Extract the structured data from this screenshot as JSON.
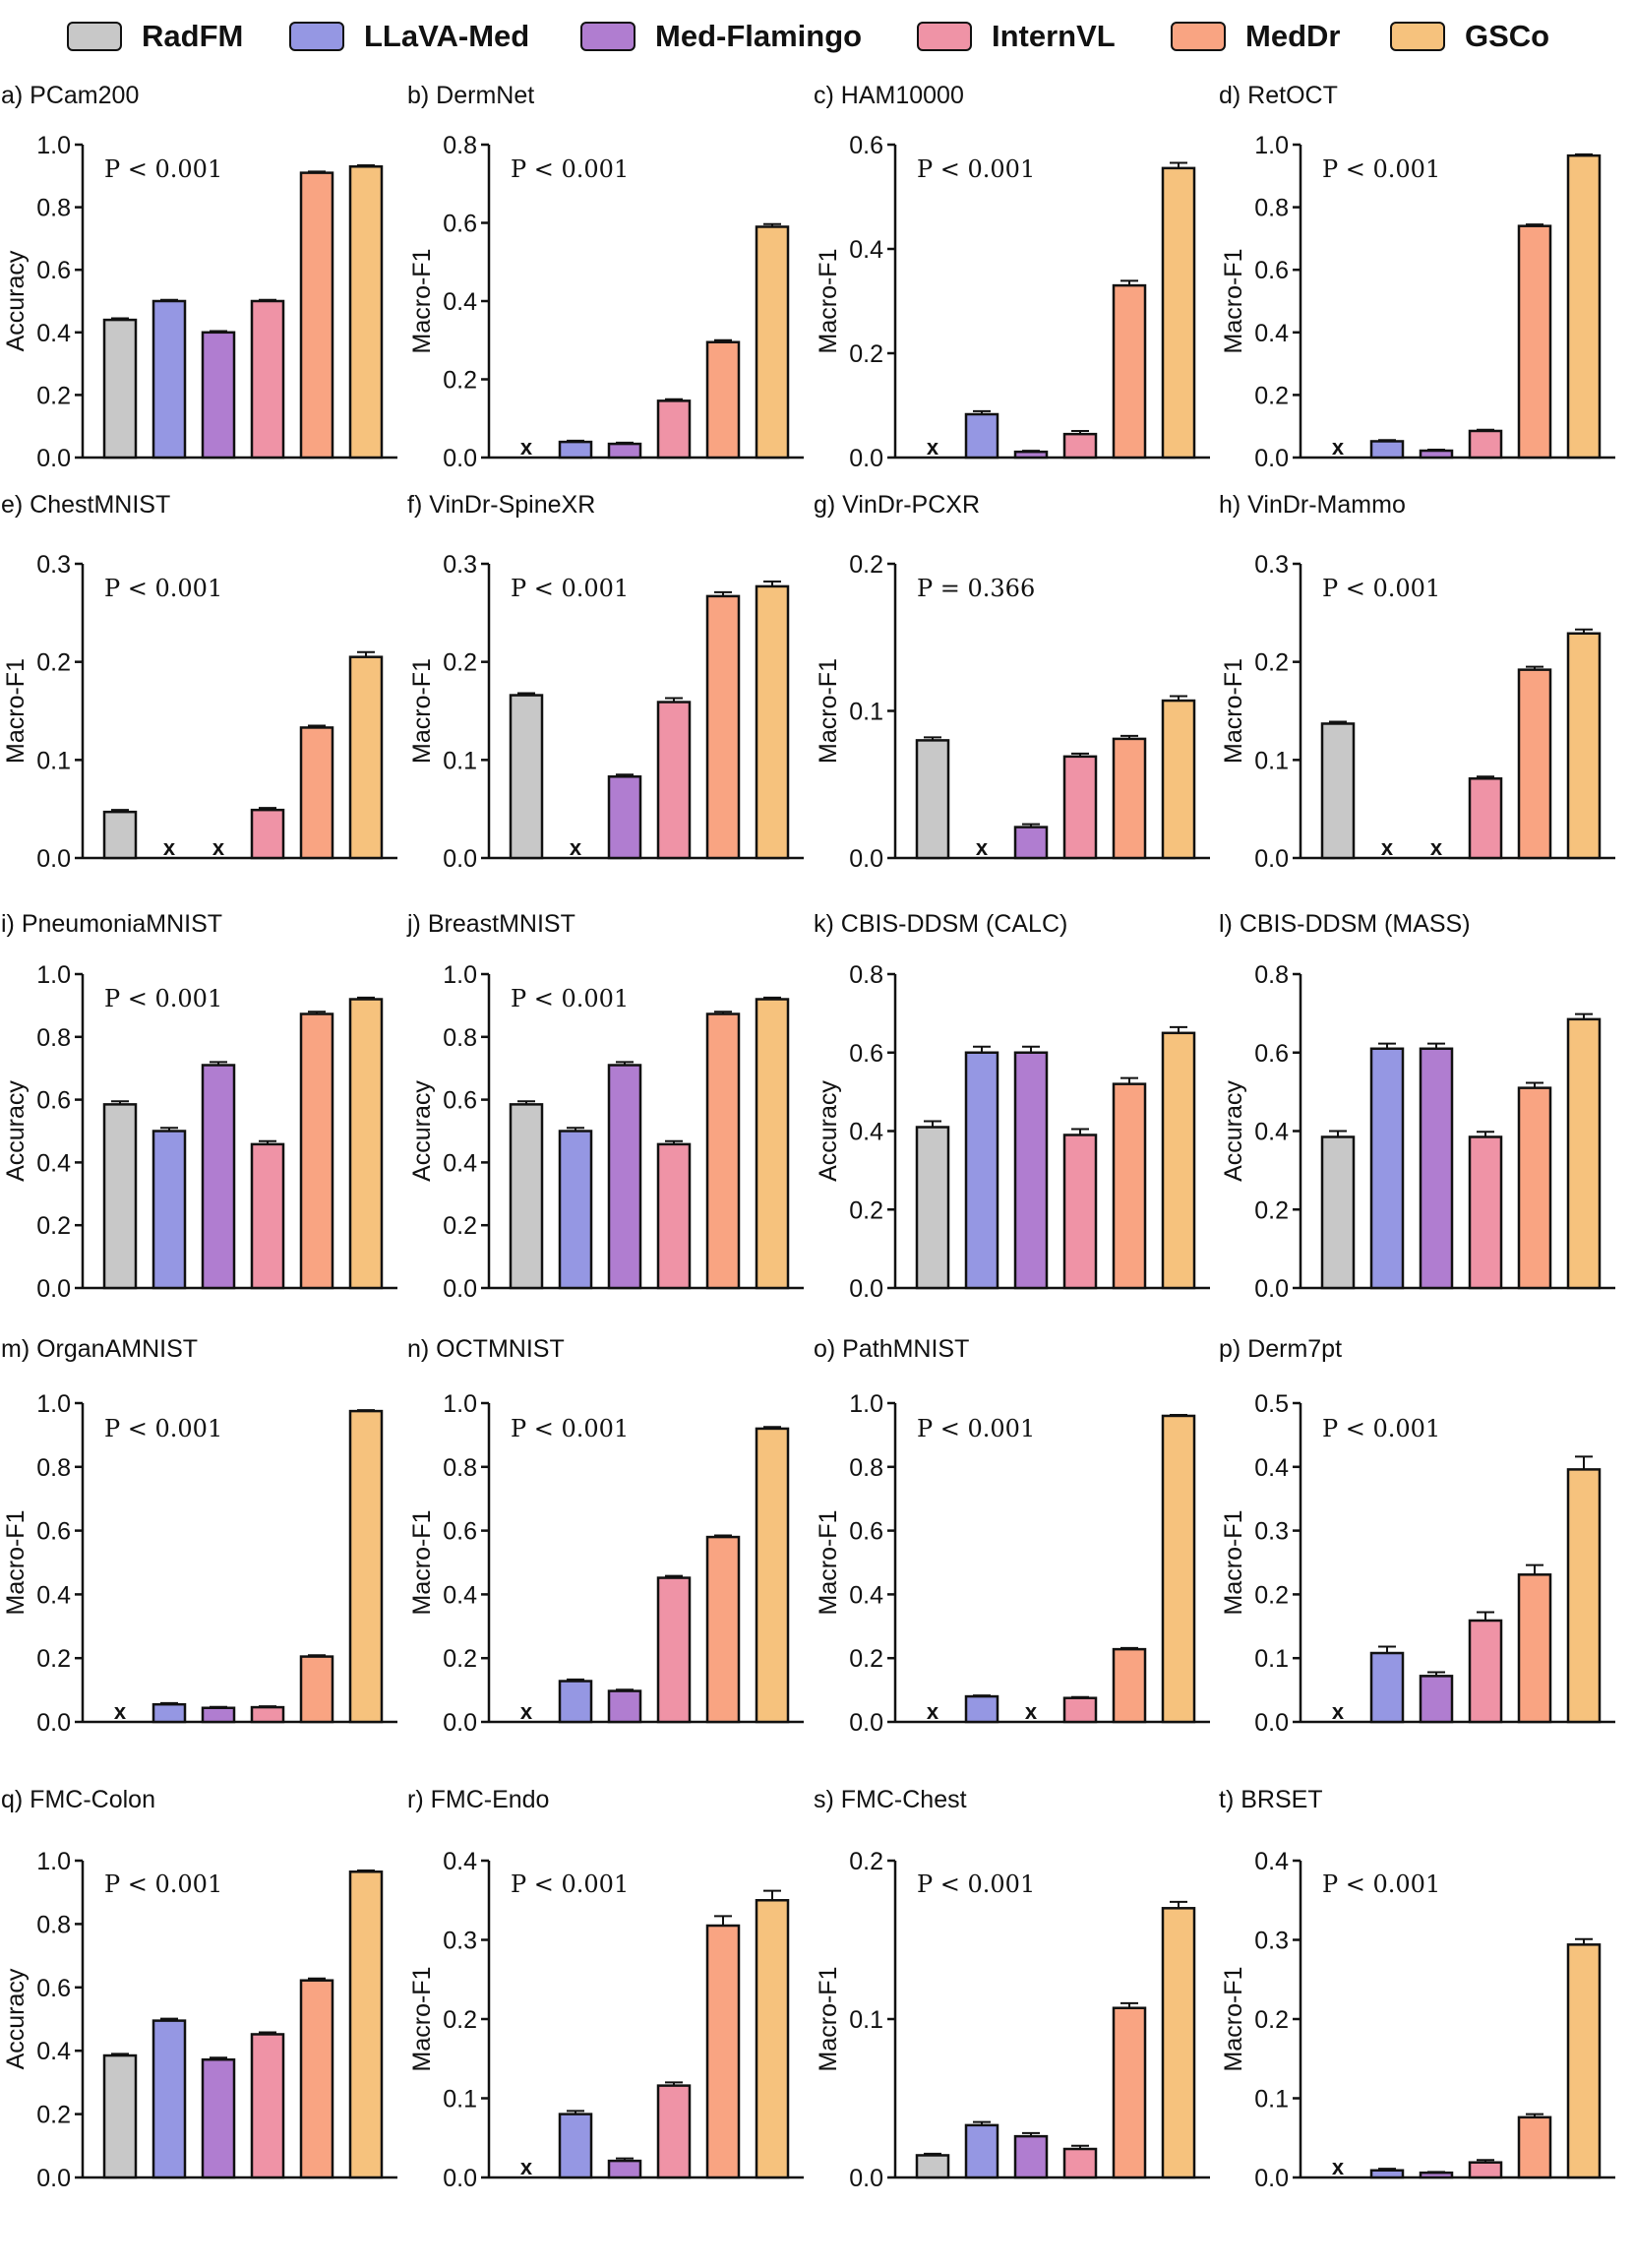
{
  "legend": [
    {
      "name": "RadFM",
      "color": "#c8c8c8"
    },
    {
      "name": "LLaVA-Med",
      "color": "#9597e3"
    },
    {
      "name": "Med-Flamingo",
      "color": "#b07dd0"
    },
    {
      "name": "InternVL",
      "color": "#ef93a6"
    },
    {
      "name": "MedDr",
      "color": "#f9a482"
    },
    {
      "name": "GSCo",
      "color": "#f6c27d"
    }
  ],
  "missing_marker": "x",
  "chart_data": [
    {
      "type": "bar",
      "title": "a) PCam200",
      "ylabel": "Accuracy",
      "ylim": [
        0,
        1.0
      ],
      "yticks": [
        "0.0",
        "0.2",
        "0.4",
        "0.6",
        "0.8",
        "1.0"
      ],
      "pvalue": "P < 0.001",
      "values": [
        0.44,
        0.5,
        0.4,
        0.5,
        0.91,
        0.93
      ],
      "errors": [
        0.005,
        0.004,
        0.004,
        0.004,
        0.004,
        0.004
      ]
    },
    {
      "type": "bar",
      "title": "b) DermNet",
      "ylabel": "Macro-F1",
      "ylim": [
        0,
        0.8
      ],
      "yticks": [
        "0.0",
        "0.2",
        "0.4",
        "0.6",
        "0.8"
      ],
      "pvalue": "P < 0.001",
      "values": [
        null,
        0.04,
        0.035,
        0.145,
        0.295,
        0.59
      ],
      "errors": [
        0,
        0.003,
        0.003,
        0.004,
        0.005,
        0.007
      ]
    },
    {
      "type": "bar",
      "title": "c) HAM10000",
      "ylabel": "Macro-F1",
      "ylim": [
        0,
        0.6
      ],
      "yticks": [
        "0.0",
        "0.2",
        "0.4",
        "0.6"
      ],
      "pvalue": "P < 0.001",
      "values": [
        null,
        0.083,
        0.011,
        0.045,
        0.33,
        0.555
      ],
      "errors": [
        0,
        0.006,
        0.002,
        0.006,
        0.009,
        0.01
      ]
    },
    {
      "type": "bar",
      "title": "d) RetOCT",
      "ylabel": "Macro-F1",
      "ylim": [
        0,
        1.0
      ],
      "yticks": [
        "0.0",
        "0.2",
        "0.4",
        "0.6",
        "0.8",
        "1.0"
      ],
      "pvalue": "P < 0.001",
      "values": [
        null,
        0.052,
        0.022,
        0.085,
        0.74,
        0.965
      ],
      "errors": [
        0,
        0.004,
        0.003,
        0.004,
        0.005,
        0.004
      ]
    },
    {
      "type": "bar",
      "title": "e) ChestMNIST",
      "ylabel": "Macro-F1",
      "ylim": [
        0,
        0.3
      ],
      "yticks": [
        "0.0",
        "0.1",
        "0.2",
        "0.3"
      ],
      "pvalue": "P < 0.001",
      "values": [
        0.047,
        null,
        null,
        0.049,
        0.133,
        0.205
      ],
      "errors": [
        0.002,
        0,
        0,
        0.002,
        0.002,
        0.005
      ]
    },
    {
      "type": "bar",
      "title": "f) VinDr-SpineXR",
      "ylabel": "Macro-F1",
      "ylim": [
        0,
        0.3
      ],
      "yticks": [
        "0.0",
        "0.1",
        "0.2",
        "0.3"
      ],
      "pvalue": "P < 0.001",
      "values": [
        0.166,
        null,
        0.083,
        0.159,
        0.267,
        0.277
      ],
      "errors": [
        0.002,
        0,
        0.002,
        0.004,
        0.004,
        0.005
      ]
    },
    {
      "type": "bar",
      "title": "g) VinDr-PCXR",
      "ylabel": "Macro-F1",
      "ylim": [
        0,
        0.2
      ],
      "yticks": [
        "0.0",
        "0.1",
        "0.2"
      ],
      "pvalue": "P = 0.366",
      "values": [
        0.08,
        null,
        0.021,
        0.069,
        0.081,
        0.107
      ],
      "errors": [
        0.002,
        0,
        0.002,
        0.002,
        0.002,
        0.003
      ]
    },
    {
      "type": "bar",
      "title": "h) VinDr-Mammo",
      "ylabel": "Macro-F1",
      "ylim": [
        0,
        0.3
      ],
      "yticks": [
        "0.0",
        "0.1",
        "0.2",
        "0.3"
      ],
      "pvalue": "P < 0.001",
      "values": [
        0.137,
        null,
        null,
        0.081,
        0.192,
        0.229
      ],
      "errors": [
        0.002,
        0,
        0,
        0.002,
        0.003,
        0.004
      ]
    },
    {
      "type": "bar",
      "title": "i) PneumoniaMNIST",
      "ylabel": "Accuracy",
      "ylim": [
        0,
        1.0
      ],
      "yticks": [
        "0.0",
        "0.2",
        "0.4",
        "0.6",
        "0.8",
        "1.0"
      ],
      "pvalue": "P < 0.001",
      "values": [
        0.585,
        0.5,
        0.71,
        0.458,
        0.873,
        0.92
      ],
      "errors": [
        0.01,
        0.01,
        0.01,
        0.01,
        0.007,
        0.005
      ]
    },
    {
      "type": "bar",
      "title": "j) BreastMNIST",
      "ylabel": "Accuracy",
      "ylim": [
        0,
        1.0
      ],
      "yticks": [
        "0.0",
        "0.2",
        "0.4",
        "0.6",
        "0.8",
        "1.0"
      ],
      "pvalue": "P < 0.001",
      "values": [
        0.585,
        0.5,
        0.71,
        0.458,
        0.873,
        0.92
      ],
      "errors": [
        0.01,
        0.01,
        0.01,
        0.01,
        0.007,
        0.005
      ]
    },
    {
      "type": "bar",
      "title": "k) CBIS-DDSM (CALC)",
      "ylabel": "Accuracy",
      "ylim": [
        0,
        0.8
      ],
      "yticks": [
        "0.0",
        "0.2",
        "0.4",
        "0.6",
        "0.8"
      ],
      "pvalue": "",
      "values": [
        0.41,
        0.6,
        0.6,
        0.39,
        0.52,
        0.65
      ],
      "errors": [
        0.015,
        0.015,
        0.015,
        0.015,
        0.015,
        0.015
      ]
    },
    {
      "type": "bar",
      "title": "l) CBIS-DDSM (MASS)",
      "ylabel": "Accuracy",
      "ylim": [
        0,
        0.8
      ],
      "yticks": [
        "0.0",
        "0.2",
        "0.4",
        "0.6",
        "0.8"
      ],
      "pvalue": "",
      "values": [
        0.385,
        0.61,
        0.61,
        0.385,
        0.51,
        0.685
      ],
      "errors": [
        0.015,
        0.013,
        0.013,
        0.013,
        0.013,
        0.013
      ]
    },
    {
      "type": "bar",
      "title": "m) OrganAMNIST",
      "ylabel": "Macro-F1",
      "ylim": [
        0,
        1.0
      ],
      "yticks": [
        "0.0",
        "0.2",
        "0.4",
        "0.6",
        "0.8",
        "1.0"
      ],
      "pvalue": "P < 0.001",
      "values": [
        null,
        0.055,
        0.044,
        0.046,
        0.205,
        0.975
      ],
      "errors": [
        0,
        0.004,
        0.003,
        0.003,
        0.004,
        0.003
      ]
    },
    {
      "type": "bar",
      "title": "n) OCTMNIST",
      "ylabel": "Macro-F1",
      "ylim": [
        0,
        1.0
      ],
      "yticks": [
        "0.0",
        "0.2",
        "0.4",
        "0.6",
        "0.8",
        "1.0"
      ],
      "pvalue": "P < 0.001",
      "values": [
        null,
        0.128,
        0.097,
        0.452,
        0.58,
        0.92
      ],
      "errors": [
        0,
        0.005,
        0.004,
        0.006,
        0.005,
        0.005
      ]
    },
    {
      "type": "bar",
      "title": "o) PathMNIST",
      "ylabel": "Macro-F1",
      "ylim": [
        0,
        1.0
      ],
      "yticks": [
        "0.0",
        "0.2",
        "0.4",
        "0.6",
        "0.8",
        "1.0"
      ],
      "pvalue": "P < 0.001",
      "values": [
        null,
        0.08,
        null,
        0.075,
        0.228,
        0.96
      ],
      "errors": [
        0,
        0.003,
        0,
        0.003,
        0.004,
        0.003
      ]
    },
    {
      "type": "bar",
      "title": "p) Derm7pt",
      "ylabel": "Macro-F1",
      "ylim": [
        0,
        0.5
      ],
      "yticks": [
        "0.0",
        "0.1",
        "0.2",
        "0.3",
        "0.4",
        "0.5"
      ],
      "pvalue": "P < 0.001",
      "values": [
        null,
        0.108,
        0.072,
        0.159,
        0.231,
        0.396
      ],
      "errors": [
        0,
        0.01,
        0.006,
        0.013,
        0.015,
        0.02
      ]
    },
    {
      "type": "bar",
      "title": "q) FMC-Colon",
      "ylabel": "Accuracy",
      "ylim": [
        0,
        1.0
      ],
      "yticks": [
        "0.0",
        "0.2",
        "0.4",
        "0.6",
        "0.8",
        "1.0"
      ],
      "pvalue": "P < 0.001",
      "values": [
        0.385,
        0.495,
        0.372,
        0.452,
        0.622,
        0.965
      ],
      "errors": [
        0.005,
        0.006,
        0.006,
        0.006,
        0.006,
        0.004
      ]
    },
    {
      "type": "bar",
      "title": "r) FMC-Endo",
      "ylabel": "Macro-F1",
      "ylim": [
        0,
        0.4
      ],
      "yticks": [
        "0.0",
        "0.1",
        "0.2",
        "0.3",
        "0.4"
      ],
      "pvalue": "P < 0.001",
      "values": [
        null,
        0.08,
        0.021,
        0.116,
        0.318,
        0.35
      ],
      "errors": [
        0,
        0.004,
        0.003,
        0.004,
        0.012,
        0.012
      ]
    },
    {
      "type": "bar",
      "title": "s) FMC-Chest",
      "ylabel": "Macro-F1",
      "ylim": [
        0,
        0.2
      ],
      "yticks": [
        "0.0",
        "0.1",
        "0.2"
      ],
      "pvalue": "P < 0.001",
      "values": [
        0.014,
        0.033,
        0.026,
        0.018,
        0.107,
        0.17
      ],
      "errors": [
        0.001,
        0.002,
        0.002,
        0.002,
        0.003,
        0.004
      ]
    },
    {
      "type": "bar",
      "title": "t) BRSET",
      "ylabel": "Macro-F1",
      "ylim": [
        0,
        0.4
      ],
      "yticks": [
        "0.0",
        "0.1",
        "0.2",
        "0.3",
        "0.4"
      ],
      "pvalue": "P < 0.001",
      "values": [
        null,
        0.009,
        0.006,
        0.019,
        0.076,
        0.294
      ],
      "errors": [
        0,
        0.002,
        0.001,
        0.003,
        0.004,
        0.007
      ]
    }
  ]
}
